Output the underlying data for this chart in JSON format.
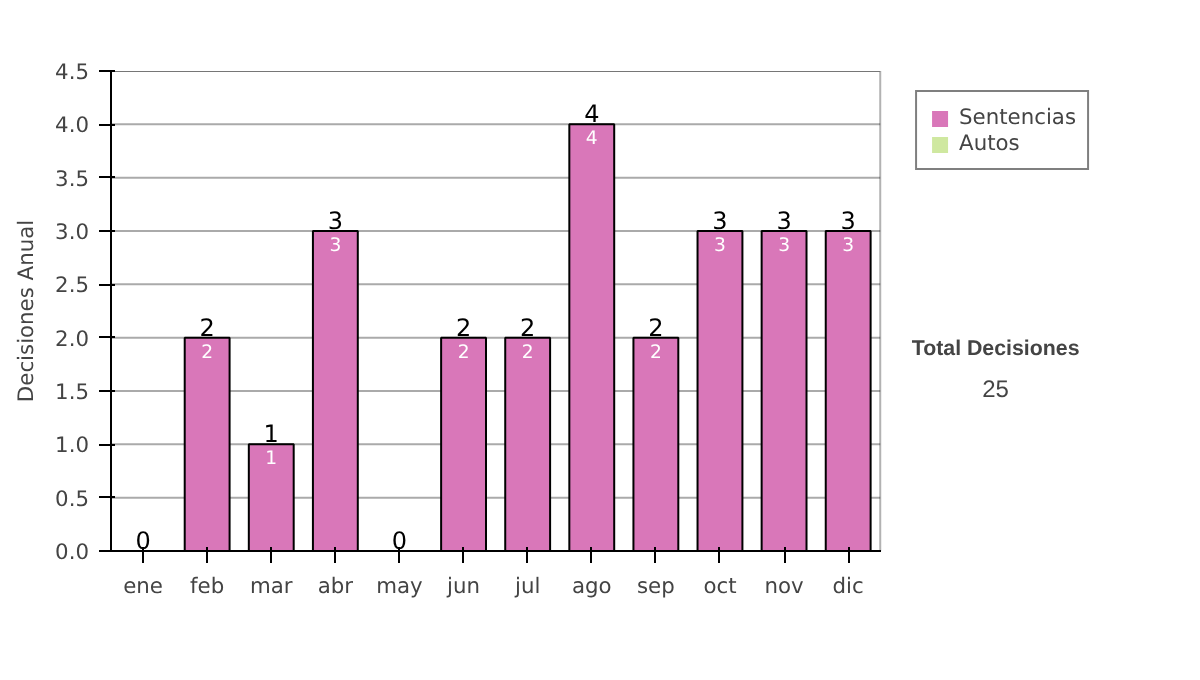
{
  "chart_data": {
    "type": "bar",
    "ylabel": "Decisiones Anual",
    "categories": [
      "ene",
      "feb",
      "mar",
      "abr",
      "may",
      "jun",
      "jul",
      "ago",
      "sep",
      "oct",
      "nov",
      "dic"
    ],
    "stacked": true,
    "series": [
      {
        "name": "Sentencias",
        "color": "#d977b9",
        "values": [
          0,
          2,
          1,
          3,
          0,
          2,
          2,
          4,
          2,
          3,
          3,
          3
        ],
        "value_labels": [
          null,
          "2",
          "1",
          "3",
          null,
          "2",
          "2",
          "4",
          "2",
          "3",
          "3",
          "3"
        ]
      },
      {
        "name": "Autos",
        "color": "#cfe8a0",
        "values": [
          0,
          0,
          0,
          0,
          0,
          0,
          0,
          0,
          0,
          0,
          0,
          0
        ]
      }
    ],
    "totals": [
      "0",
      "2",
      "1",
      "3",
      "0",
      "2",
      "2",
      "4",
      "2",
      "3",
      "3",
      "3"
    ],
    "ylim": [
      0,
      4.5
    ],
    "yticks": [
      {
        "value": 0,
        "label": "0.0"
      },
      {
        "value": 0.5,
        "label": "0.5"
      },
      {
        "value": 1,
        "label": "1.0"
      },
      {
        "value": 1.5,
        "label": "1.5"
      },
      {
        "value": 2,
        "label": "2.0"
      },
      {
        "value": 2.5,
        "label": "2.5"
      },
      {
        "value": 3,
        "label": "3.0"
      },
      {
        "value": 3.5,
        "label": "3.5"
      },
      {
        "value": 4,
        "label": "4.0"
      },
      {
        "value": 4.5,
        "label": "4.5"
      }
    ],
    "grid": "y",
    "legend": "right",
    "annotations": [
      "Total Decisiones",
      "25"
    ]
  }
}
